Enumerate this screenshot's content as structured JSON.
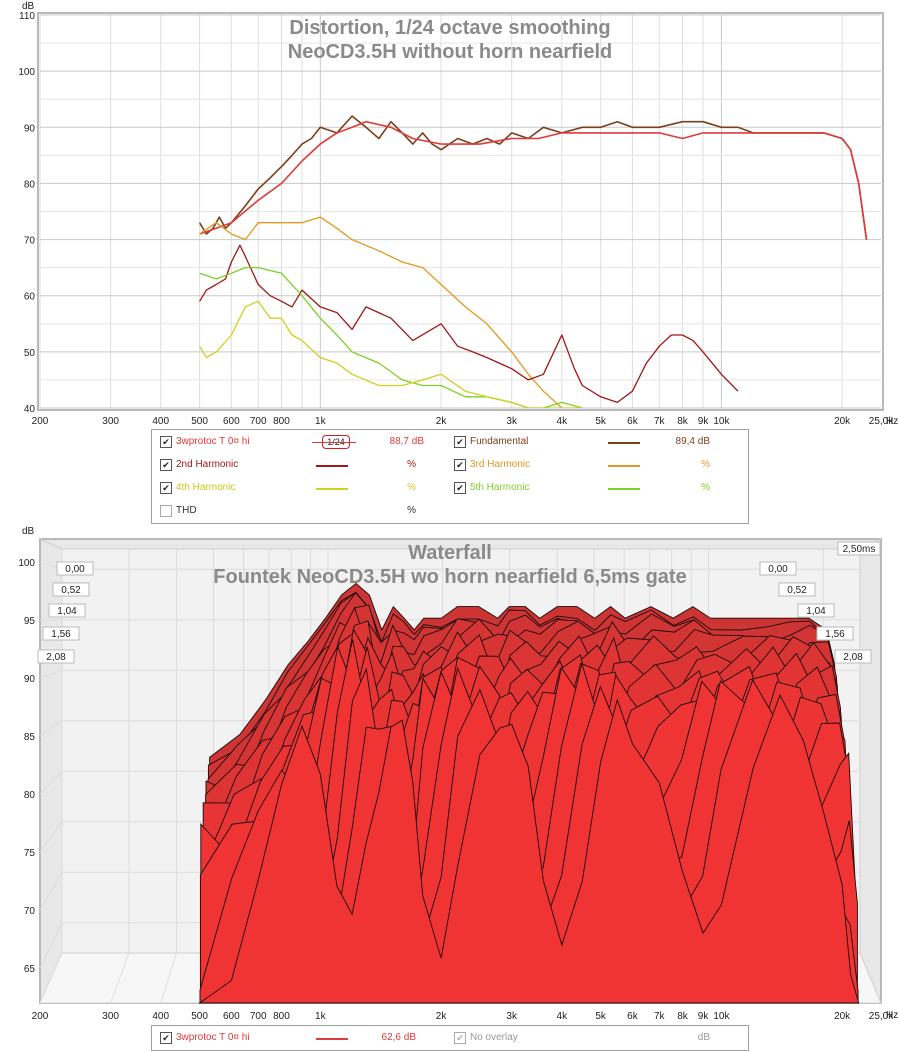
{
  "chart_data": [
    {
      "type": "line",
      "title": "Distortion, 1/24 octave smoothing",
      "subtitle": "NeoCD3.5H without horn nearfield",
      "ylabel": "dB",
      "xunit": "Hz",
      "xscale": "log",
      "xlim": [
        200,
        25000
      ],
      "ylim": [
        40,
        110
      ],
      "grid": true,
      "xtick_labels": [
        {
          "v": 200,
          "t": "200"
        },
        {
          "v": 300,
          "t": "300"
        },
        {
          "v": 400,
          "t": "400"
        },
        {
          "v": 500,
          "t": "500"
        },
        {
          "v": 600,
          "t": "600"
        },
        {
          "v": 700,
          "t": "700"
        },
        {
          "v": 800,
          "t": "800"
        },
        {
          "v": 1000,
          "t": "1k"
        },
        {
          "v": 2000,
          "t": "2k"
        },
        {
          "v": 3000,
          "t": "3k"
        },
        {
          "v": 4000,
          "t": "4k"
        },
        {
          "v": 5000,
          "t": "5k"
        },
        {
          "v": 6000,
          "t": "6k"
        },
        {
          "v": 7000,
          "t": "7k"
        },
        {
          "v": 8000,
          "t": "8k"
        },
        {
          "v": 9000,
          "t": "9k"
        },
        {
          "v": 10000,
          "t": "10k"
        },
        {
          "v": 20000,
          "t": "20k"
        },
        {
          "v": 25000,
          "t": "25,0k"
        }
      ],
      "ytick_labels": [
        40,
        50,
        60,
        70,
        80,
        90,
        100,
        110
      ],
      "series": [
        {
          "name": "Fundamental",
          "color": "#7b3f1a",
          "width": 1.6,
          "x": [
            500,
            520,
            540,
            560,
            580,
            600,
            650,
            700,
            750,
            800,
            850,
            900,
            950,
            1000,
            1100,
            1200,
            1300,
            1400,
            1500,
            1600,
            1700,
            1800,
            1900,
            2000,
            2200,
            2400,
            2600,
            2800,
            3000,
            3300,
            3600,
            4000,
            4500,
            5000,
            5500,
            6000,
            7000,
            8000,
            9000,
            10000,
            11000,
            12000,
            14000,
            16000,
            18000,
            20000,
            21000,
            22000,
            23000
          ],
          "y": [
            73,
            71,
            72,
            74,
            72,
            73,
            76,
            79,
            81,
            83,
            85,
            87,
            88,
            90,
            89,
            92,
            90,
            88,
            91,
            89,
            87,
            89,
            87,
            86,
            88,
            87,
            88,
            87,
            89,
            88,
            90,
            89,
            90,
            90,
            91,
            90,
            90,
            91,
            91,
            90,
            90,
            89,
            89,
            89,
            89,
            88,
            86,
            80,
            70
          ]
        },
        {
          "name": "3wprotoc T 0¤ hi",
          "color": "#e03a3a",
          "width": 1.6,
          "x": [
            500,
            550,
            600,
            700,
            800,
            900,
            1000,
            1100,
            1200,
            1300,
            1500,
            1700,
            2000,
            2500,
            3000,
            3500,
            4000,
            4500,
            5000,
            5500,
            6000,
            7000,
            8000,
            9000,
            10000,
            12000,
            14000,
            16000,
            18000,
            20000,
            21000,
            22000,
            23000
          ],
          "y": [
            71,
            72,
            73,
            77,
            80,
            84,
            87,
            89,
            90,
            91,
            90,
            88,
            87,
            87,
            88,
            88,
            89,
            89,
            89,
            89,
            89,
            89,
            88,
            89,
            89,
            89,
            89,
            89,
            89,
            88,
            86,
            80,
            70
          ]
        },
        {
          "name": "3rd Harmonic",
          "color": "#e09a20",
          "width": 1.3,
          "x": [
            500,
            550,
            600,
            650,
            700,
            800,
            900,
            1000,
            1100,
            1200,
            1400,
            1600,
            1800,
            2000,
            2300,
            2600,
            3000,
            3300,
            3600,
            4000,
            4500
          ],
          "y": [
            71,
            73,
            71,
            70,
            73,
            73,
            73,
            74,
            72,
            70,
            68,
            66,
            65,
            62,
            58,
            55,
            50,
            46,
            43,
            40,
            39
          ]
        },
        {
          "name": "2nd Harmonic",
          "color": "#a01818",
          "width": 1.3,
          "x": [
            500,
            520,
            550,
            580,
            600,
            630,
            650,
            700,
            750,
            800,
            850,
            900,
            1000,
            1100,
            1200,
            1300,
            1500,
            1700,
            2000,
            2200,
            2400,
            2600,
            3000,
            3300,
            3600,
            4000,
            4300,
            4500,
            5000,
            5500,
            6000,
            6500,
            7000,
            7500,
            8000,
            8500,
            9000,
            10000,
            11000
          ],
          "y": [
            59,
            61,
            62,
            63,
            66,
            69,
            67,
            62,
            60,
            59,
            58,
            61,
            58,
            57,
            54,
            58,
            56,
            52,
            55,
            51,
            50,
            49,
            47,
            45,
            46,
            53,
            47,
            44,
            42,
            41,
            43,
            48,
            51,
            53,
            53,
            52,
            50,
            46,
            43
          ]
        },
        {
          "name": "5th Harmonic",
          "color": "#7ecf28",
          "width": 1.3,
          "x": [
            500,
            550,
            600,
            650,
            700,
            800,
            900,
            1000,
            1100,
            1200,
            1400,
            1600,
            1800,
            2000,
            2300,
            2600,
            3000,
            3300,
            3600,
            4000,
            4500
          ],
          "y": [
            64,
            63,
            64,
            65,
            65,
            64,
            60,
            56,
            53,
            50,
            48,
            45,
            44,
            44,
            42,
            42,
            41,
            40,
            40,
            41,
            40
          ]
        },
        {
          "name": "4th Harmonic",
          "color": "#cfd020",
          "width": 1.3,
          "x": [
            500,
            520,
            550,
            600,
            650,
            700,
            750,
            800,
            850,
            900,
            1000,
            1100,
            1200,
            1400,
            1600,
            1800,
            2000,
            2300,
            2600,
            3000,
            3300,
            3600,
            4000,
            4500
          ],
          "y": [
            51,
            49,
            50,
            53,
            58,
            59,
            56,
            56,
            53,
            52,
            49,
            48,
            46,
            44,
            44,
            45,
            46,
            43,
            42,
            41,
            40,
            40,
            40,
            40
          ]
        }
      ]
    },
    {
      "type": "area",
      "title": "Waterfall",
      "subtitle": "Fountek NeoCD3.5H wo horn nearfield 6,5ms gate",
      "ylabel": "dB",
      "xunit": "Hz",
      "xscale": "log",
      "xlim": [
        200,
        25000
      ],
      "ylim": [
        62,
        102
      ],
      "grid": true,
      "zlabels": [
        "0,00",
        "0,52",
        "1,04",
        "1,56",
        "2,08",
        "2,50ms"
      ],
      "xtick_labels": [
        {
          "v": 200,
          "t": "200"
        },
        {
          "v": 300,
          "t": "300"
        },
        {
          "v": 400,
          "t": "400"
        },
        {
          "v": 500,
          "t": "500"
        },
        {
          "v": 600,
          "t": "600"
        },
        {
          "v": 700,
          "t": "700"
        },
        {
          "v": 800,
          "t": "800"
        },
        {
          "v": 1000,
          "t": "1k"
        },
        {
          "v": 2000,
          "t": "2k"
        },
        {
          "v": 3000,
          "t": "3k"
        },
        {
          "v": 4000,
          "t": "4k"
        },
        {
          "v": 5000,
          "t": "5k"
        },
        {
          "v": 6000,
          "t": "6k"
        },
        {
          "v": 7000,
          "t": "7k"
        },
        {
          "v": 8000,
          "t": "8k"
        },
        {
          "v": 9000,
          "t": "9k"
        },
        {
          "v": 10000,
          "t": "10k"
        },
        {
          "v": 20000,
          "t": "20k"
        },
        {
          "v": 25000,
          "t": "25,0k"
        }
      ],
      "ytick_labels": [
        65,
        70,
        75,
        80,
        85,
        90,
        95,
        100
      ],
      "front_slice": {
        "x": [
          500,
          600,
          700,
          800,
          900,
          1000,
          1100,
          1200,
          1300,
          1400,
          1500,
          1600,
          1700,
          1800,
          2000,
          2200,
          2500,
          2800,
          3000,
          3300,
          3600,
          4000,
          4500,
          5000,
          5500,
          6000,
          7000,
          8000,
          9000,
          10000,
          12000,
          14000,
          16000,
          18000,
          20000,
          21000,
          22000
        ],
        "y": [
          78,
          80,
          83,
          86,
          88,
          90,
          92,
          93,
          92,
          89,
          91,
          90,
          89,
          90,
          90,
          91,
          91,
          90,
          91,
          91,
          90,
          91,
          91,
          90,
          91,
          90,
          91,
          90,
          91,
          90,
          90,
          90,
          90,
          90,
          89,
          86,
          72
        ]
      }
    }
  ],
  "legend1": {
    "rows": [
      {
        "name": "3wprotoc T 0¤ hi",
        "smoothing": "1/24",
        "value": "88,7 dB",
        "color": "#e03a3a",
        "checked": true
      },
      {
        "name": "Fundamental",
        "value": "89,4 dB",
        "color": "#7b3f1a",
        "checked": true
      },
      {
        "name": "2nd Harmonic",
        "value": "%",
        "color": "#a01818",
        "checked": true
      },
      {
        "name": "3rd Harmonic",
        "value": "%",
        "color": "#e09a20",
        "checked": true
      },
      {
        "name": "4th Harmonic",
        "value": "%",
        "color": "#cfd020",
        "checked": true
      },
      {
        "name": "5th Harmonic",
        "value": "%",
        "color": "#7ecf28",
        "checked": true
      },
      {
        "name": "THD",
        "value": "%",
        "color": "#333333",
        "checked": false
      }
    ]
  },
  "legend2": {
    "rows": [
      {
        "name": "3wprotoc T 0¤ hi",
        "value": "62,6 dB",
        "color": "#e03a3a",
        "checked": true
      },
      {
        "name": "No overlay",
        "value": "dB",
        "color": "#999999",
        "checked": true
      }
    ]
  }
}
